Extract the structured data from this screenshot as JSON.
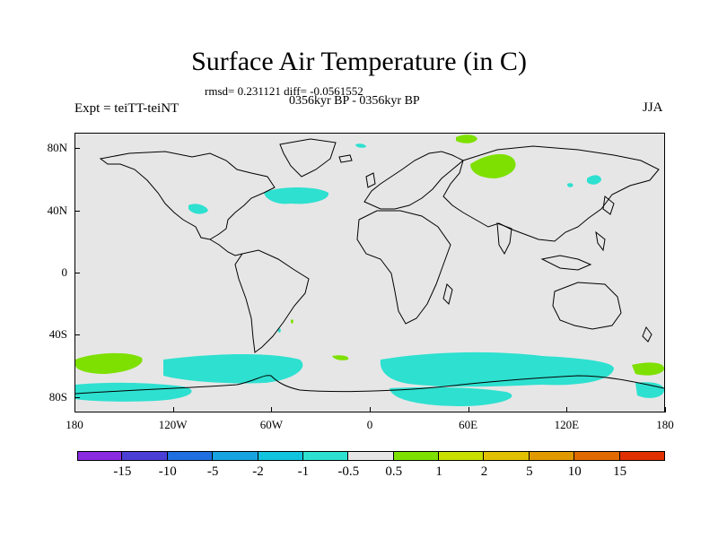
{
  "title": "Surface Air Temperature (in C)",
  "stats_line": "rmsd= 0.231121 diff= -0.0561552",
  "period_line": "0356kyr BP - 0356kyr BP",
  "experiment_label": "Expt = teiTT-teiNT",
  "season_label": "JJA",
  "map": {
    "projection": "cylindrical-equidistant",
    "ocean_land_background_color": "#e6e6e6",
    "lat_range": [
      -90,
      90
    ],
    "lon_range": [
      -180,
      180
    ],
    "lat_ticks": [
      {
        "value": 80,
        "label": "80N"
      },
      {
        "value": 40,
        "label": "40N"
      },
      {
        "value": 0,
        "label": "0"
      },
      {
        "value": -40,
        "label": "40S"
      },
      {
        "value": -80,
        "label": "80S"
      }
    ],
    "lon_ticks": [
      {
        "value": -180,
        "label": "180"
      },
      {
        "value": -120,
        "label": "120W"
      },
      {
        "value": -60,
        "label": "60W"
      },
      {
        "value": 0,
        "label": "0"
      },
      {
        "value": 60,
        "label": "60E"
      },
      {
        "value": 120,
        "label": "120E"
      },
      {
        "value": 180,
        "label": "180"
      }
    ]
  },
  "colorbar": {
    "colors": [
      "#8a2be2",
      "#4b3fd6",
      "#1f6fe0",
      "#17a3e0",
      "#10c4e0",
      "#2ee0d0",
      "#e6e6e6",
      "#7ee000",
      "#c8e000",
      "#e0c000",
      "#e09a00",
      "#e06a00",
      "#e03000"
    ],
    "labels": [
      "-15",
      "-10",
      "-5",
      "-2",
      "-1",
      "-0.5",
      "0.5",
      "1",
      "2",
      "5",
      "10",
      "15"
    ]
  }
}
